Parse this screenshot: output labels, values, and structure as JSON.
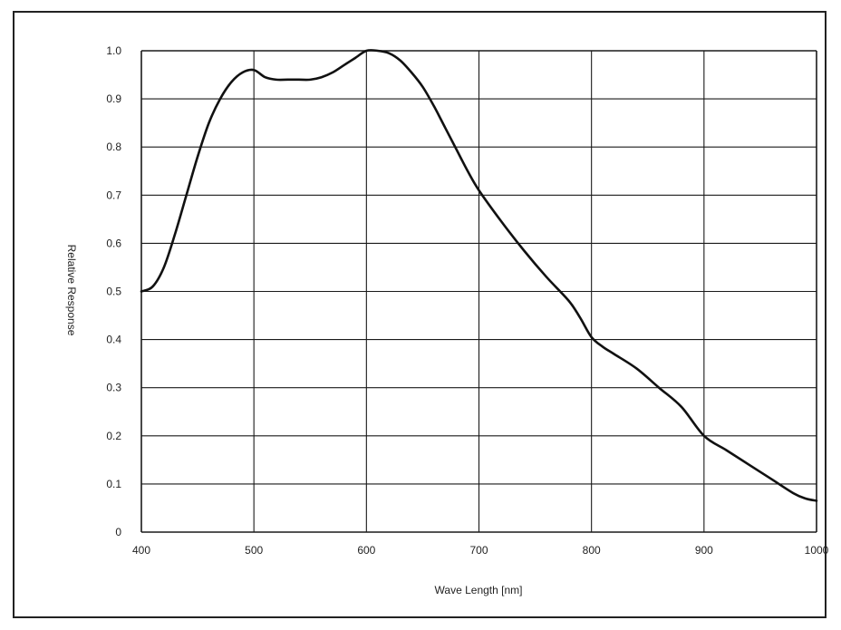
{
  "chart_data": {
    "type": "line",
    "title": "",
    "xlabel": "Wave Length [nm]",
    "ylabel": "Relative Response",
    "xlim": [
      400,
      1000
    ],
    "ylim": [
      0,
      1.0
    ],
    "grid": true,
    "x_ticks": [
      400,
      500,
      600,
      700,
      800,
      900,
      1000
    ],
    "x_tick_labels": [
      "400",
      "500",
      "600",
      "700",
      "800",
      "900",
      "1000"
    ],
    "y_ticks": [
      0,
      0.1,
      0.2,
      0.3,
      0.4,
      0.5,
      0.6,
      0.7,
      0.8,
      0.9,
      1.0
    ],
    "y_tick_labels": [
      "0",
      "0.1",
      "0.2",
      "0.3",
      "0.4",
      "0.5",
      "0.6",
      "0.7",
      "0.8",
      "0.9",
      "1.0"
    ],
    "line_color": "#111111",
    "series": [
      {
        "x": [
          400,
          410,
          420,
          430,
          440,
          450,
          460,
          470,
          480,
          490,
          500,
          510,
          520,
          530,
          540,
          550,
          560,
          570,
          580,
          590,
          600,
          610,
          620,
          630,
          640,
          650,
          660,
          670,
          680,
          690,
          700,
          720,
          740,
          760,
          780,
          790,
          800,
          810,
          820,
          840,
          860,
          880,
          900,
          920,
          940,
          960,
          980,
          990,
          1000
        ],
        "y": [
          0.5,
          0.51,
          0.55,
          0.62,
          0.7,
          0.78,
          0.85,
          0.9,
          0.935,
          0.955,
          0.96,
          0.945,
          0.94,
          0.94,
          0.94,
          0.94,
          0.945,
          0.955,
          0.97,
          0.985,
          1.0,
          1.0,
          0.995,
          0.98,
          0.955,
          0.925,
          0.885,
          0.84,
          0.795,
          0.75,
          0.71,
          0.645,
          0.585,
          0.53,
          0.48,
          0.445,
          0.405,
          0.385,
          0.37,
          0.34,
          0.3,
          0.26,
          0.2,
          0.17,
          0.14,
          0.11,
          0.08,
          0.07,
          0.065
        ]
      }
    ]
  }
}
